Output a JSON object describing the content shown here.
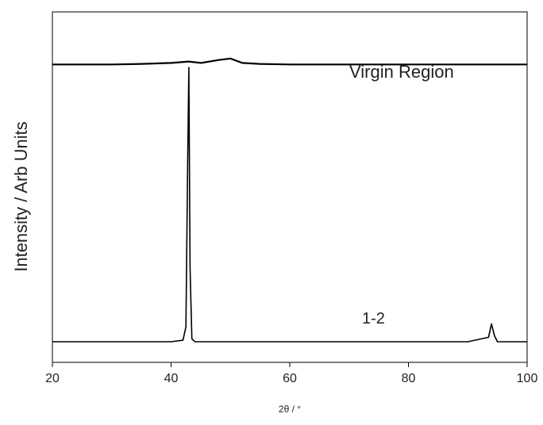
{
  "chart_data": {
    "type": "line",
    "title": "",
    "xlabel": "2θ / °",
    "ylabel": "Intensity / Arb Units",
    "xlim": [
      20,
      100
    ],
    "xticks": [
      20,
      40,
      60,
      80,
      100
    ],
    "y_tick_labels_shown": false,
    "grid": false,
    "series": [
      {
        "name": "Virgin Region",
        "line_color": "#000000",
        "points": [
          [
            20,
            0.93
          ],
          [
            25,
            0.93
          ],
          [
            30,
            0.93
          ],
          [
            35,
            0.932
          ],
          [
            40,
            0.935
          ],
          [
            43,
            0.94
          ],
          [
            45,
            0.935
          ],
          [
            48,
            0.945
          ],
          [
            50,
            0.95
          ],
          [
            52,
            0.935
          ],
          [
            55,
            0.932
          ],
          [
            60,
            0.93
          ],
          [
            70,
            0.93
          ],
          [
            80,
            0.93
          ],
          [
            90,
            0.93
          ],
          [
            100,
            0.93
          ]
        ]
      },
      {
        "name": "1-2",
        "line_color": "#000000",
        "points": [
          [
            20,
            0.0
          ],
          [
            30,
            0.0
          ],
          [
            40,
            0.0
          ],
          [
            42,
            0.005
          ],
          [
            42.5,
            0.05
          ],
          [
            42.8,
            0.6
          ],
          [
            43.0,
            0.92
          ],
          [
            43.2,
            0.25
          ],
          [
            43.5,
            0.01
          ],
          [
            44,
            0.0
          ],
          [
            50,
            0.0
          ],
          [
            60,
            0.0
          ],
          [
            70,
            0.0
          ],
          [
            80,
            0.0
          ],
          [
            90,
            0.0
          ],
          [
            93.5,
            0.015
          ],
          [
            94.0,
            0.06
          ],
          [
            94.5,
            0.02
          ],
          [
            95,
            0.0
          ],
          [
            100,
            0.0
          ]
        ]
      }
    ],
    "annotations": [
      {
        "text": "Virgin Region",
        "series": "Virgin Region"
      },
      {
        "text": "1-2",
        "series": "1-2"
      }
    ]
  }
}
